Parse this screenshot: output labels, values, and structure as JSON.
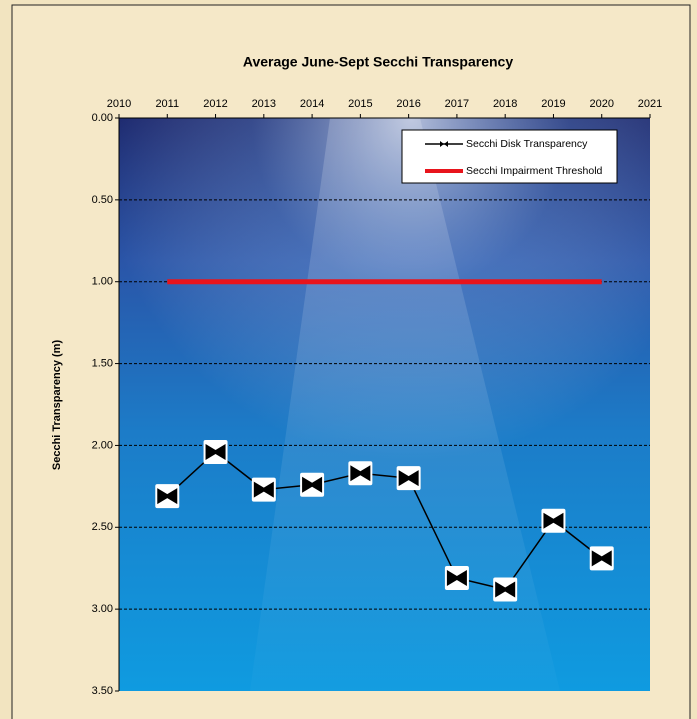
{
  "chart_data": {
    "type": "line",
    "title": "Average June-Sept Secchi Transparency",
    "y_label": "Secchi Transparency (m)",
    "x_axis_position": "top",
    "y_inverted": true,
    "xlim": [
      2010,
      2021
    ],
    "xticks": [
      2010,
      2011,
      2012,
      2013,
      2014,
      2015,
      2016,
      2017,
      2018,
      2019,
      2020,
      2021
    ],
    "ylim": [
      0,
      3.5
    ],
    "yticks": [
      {
        "value": 0,
        "label": "0.00"
      },
      {
        "value": 0.5,
        "label": "0.50"
      },
      {
        "value": 1,
        "label": "1.00"
      },
      {
        "value": 1.5,
        "label": "1.50"
      },
      {
        "value": 2,
        "label": "2.00"
      },
      {
        "value": 2.5,
        "label": "2.50"
      },
      {
        "value": 3,
        "label": "3.00"
      },
      {
        "value": 3.5,
        "label": "3.50"
      }
    ],
    "grid": true,
    "legend": "upper right",
    "series": [
      {
        "name": "Secchi Disk Transparency",
        "color": "#000000",
        "marker": true,
        "x": [
          2011,
          2012,
          2013,
          2014,
          2015,
          2016,
          2017,
          2018,
          2019,
          2020
        ],
        "values": [
          2.31,
          2.04,
          2.27,
          2.24,
          2.17,
          2.2,
          2.81,
          2.88,
          2.46,
          2.69
        ]
      },
      {
        "name": "Secchi Impairment Threshold",
        "color": "#e8141c",
        "marker": false,
        "x": [
          2011,
          2020
        ],
        "values": [
          1,
          1
        ]
      }
    ]
  }
}
